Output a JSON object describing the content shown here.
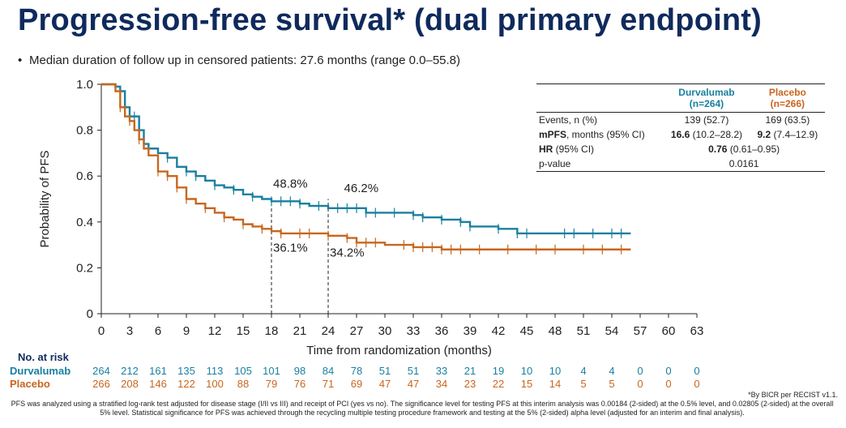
{
  "title": "Progression-free survival* (dual primary endpoint)",
  "bullet": "Median duration of follow up in censored patients: 27.6 months (range 0.0–55.8)",
  "colors": {
    "durvalumab": "#1a7fa0",
    "placebo": "#c8661e",
    "title": "#0f2a5c"
  },
  "stats_table": {
    "head": {
      "durvalumab": "Durvalumab",
      "durvalumab_n": "(n=264)",
      "placebo": "Placebo",
      "placebo_n": "(n=266)"
    },
    "events_label": "Events, n (%)",
    "events_durva": "139 (52.7)",
    "events_plac": "169 (63.5)",
    "mpfs_label_bold": "mPFS",
    "mpfs_label_rest": ", months (95% CI)",
    "mpfs_durva_bold": "16.6",
    "mpfs_durva_ci": " (10.2–28.2)",
    "mpfs_plac_bold": "9.2",
    "mpfs_plac_ci": " (7.4–12.9)",
    "hr_label_bold": "HR",
    "hr_label_rest": " (95% CI)",
    "hr_value_bold": "0.76",
    "hr_value_ci": " (0.61–0.95)",
    "p_label": "p-value",
    "p_value": "0.0161"
  },
  "chart_data": {
    "type": "line",
    "title": "",
    "xlabel": "Time from randomization (months)",
    "ylabel": "Probability of PFS",
    "xlim": [
      0,
      63
    ],
    "ylim": [
      0,
      1.0
    ],
    "x_ticks": [
      0,
      3,
      6,
      9,
      12,
      15,
      18,
      21,
      24,
      27,
      30,
      33,
      36,
      39,
      42,
      45,
      48,
      51,
      54,
      57,
      60,
      63
    ],
    "y_ticks": [
      0,
      0.2,
      0.4,
      0.6,
      0.8,
      1.0
    ],
    "y_tick_labels": [
      "0",
      "0.2",
      "0.4",
      "0.6",
      "0.8",
      "1.0"
    ],
    "series": [
      {
        "name": "Durvalumab",
        "points": [
          [
            0,
            1.0
          ],
          [
            1,
            1.0
          ],
          [
            1.5,
            0.99
          ],
          [
            2,
            0.97
          ],
          [
            2.5,
            0.9
          ],
          [
            3,
            0.86
          ],
          [
            4,
            0.8
          ],
          [
            4.5,
            0.74
          ],
          [
            5,
            0.72
          ],
          [
            6,
            0.7
          ],
          [
            7,
            0.68
          ],
          [
            8,
            0.64
          ],
          [
            9,
            0.62
          ],
          [
            10,
            0.6
          ],
          [
            11,
            0.58
          ],
          [
            12,
            0.56
          ],
          [
            13,
            0.55
          ],
          [
            14,
            0.54
          ],
          [
            15,
            0.52
          ],
          [
            16,
            0.51
          ],
          [
            17,
            0.5
          ],
          [
            18,
            0.49
          ],
          [
            20,
            0.49
          ],
          [
            21,
            0.48
          ],
          [
            22,
            0.47
          ],
          [
            24,
            0.46
          ],
          [
            27,
            0.46
          ],
          [
            28,
            0.44
          ],
          [
            30,
            0.44
          ],
          [
            33,
            0.43
          ],
          [
            34,
            0.42
          ],
          [
            36,
            0.41
          ],
          [
            38,
            0.4
          ],
          [
            39,
            0.38
          ],
          [
            42,
            0.37
          ],
          [
            44,
            0.35
          ],
          [
            56,
            0.35
          ]
        ],
        "censor_x": [
          2,
          3.5,
          4,
          5,
          7,
          9,
          10,
          12,
          14,
          16,
          18,
          19,
          20,
          21,
          23,
          25,
          26,
          27,
          28,
          29,
          31,
          33,
          34,
          36,
          38,
          39,
          42,
          44,
          45,
          49,
          50,
          52,
          54,
          55
        ]
      },
      {
        "name": "Placebo",
        "points": [
          [
            0,
            1.0
          ],
          [
            1,
            1.0
          ],
          [
            1.5,
            0.97
          ],
          [
            2,
            0.9
          ],
          [
            2.5,
            0.86
          ],
          [
            3,
            0.84
          ],
          [
            3.5,
            0.8
          ],
          [
            4,
            0.76
          ],
          [
            4.5,
            0.72
          ],
          [
            5,
            0.69
          ],
          [
            6,
            0.62
          ],
          [
            7,
            0.6
          ],
          [
            8,
            0.55
          ],
          [
            9,
            0.5
          ],
          [
            10,
            0.48
          ],
          [
            11,
            0.46
          ],
          [
            12,
            0.44
          ],
          [
            13,
            0.42
          ],
          [
            14,
            0.41
          ],
          [
            15,
            0.39
          ],
          [
            16,
            0.38
          ],
          [
            17,
            0.37
          ],
          [
            18,
            0.36
          ],
          [
            19,
            0.35
          ],
          [
            20,
            0.35
          ],
          [
            24,
            0.34
          ],
          [
            26,
            0.33
          ],
          [
            27,
            0.31
          ],
          [
            30,
            0.3
          ],
          [
            33,
            0.29
          ],
          [
            35,
            0.29
          ],
          [
            36,
            0.28
          ],
          [
            56,
            0.28
          ]
        ],
        "censor_x": [
          2,
          3,
          4,
          6,
          7,
          8,
          9,
          11,
          13,
          15,
          17,
          19,
          21,
          22,
          24,
          26,
          27,
          28,
          29,
          32,
          33,
          34,
          35,
          36,
          37,
          38,
          40,
          43,
          46,
          48,
          51,
          53,
          55
        ]
      }
    ],
    "reference_lines": [
      {
        "x": 18
      },
      {
        "x": 24
      }
    ],
    "annotations": [
      {
        "text": "48.8%",
        "x": 20,
        "y": 0.55,
        "series": "Durvalumab"
      },
      {
        "text": "46.2%",
        "x": 27.5,
        "y": 0.53,
        "series": "Durvalumab"
      },
      {
        "text": "36.1%",
        "x": 20,
        "y": 0.27,
        "series": "Placebo"
      },
      {
        "text": "34.2%",
        "x": 26,
        "y": 0.25,
        "series": "Placebo"
      }
    ],
    "risk_table": {
      "label": "No. at risk",
      "rows": [
        {
          "name": "Durvalumab",
          "values": [
            "264",
            "212",
            "161",
            "135",
            "113",
            "105",
            "101",
            "98",
            "84",
            "78",
            "51",
            "51",
            "33",
            "21",
            "19",
            "10",
            "10",
            "4",
            "4",
            "0",
            "0",
            "0"
          ]
        },
        {
          "name": "Placebo",
          "values": [
            "266",
            "208",
            "146",
            "122",
            "100",
            "88",
            "79",
            "76",
            "71",
            "69",
            "47",
            "47",
            "34",
            "23",
            "22",
            "15",
            "14",
            "5",
            "5",
            "0",
            "0",
            "0"
          ]
        }
      ]
    }
  },
  "footnote_a": "*By BICR per RECIST v1.1.",
  "footnote_b": "PFS was analyzed using a stratified log-rank test adjusted for disease stage (I/II vs III) and receipt of PCI (yes vs no). The significance level for testing PFS at this interim analysis was 0.00184 (2-sided) at the 0.5% level, and 0.02805 (2-sided) at the overall 5% level. Statistical significance for PFS was achieved through the recycling multiple testing procedure framework and testing at the 5% (2-sided) alpha level (adjusted for an interim and final analysis)."
}
